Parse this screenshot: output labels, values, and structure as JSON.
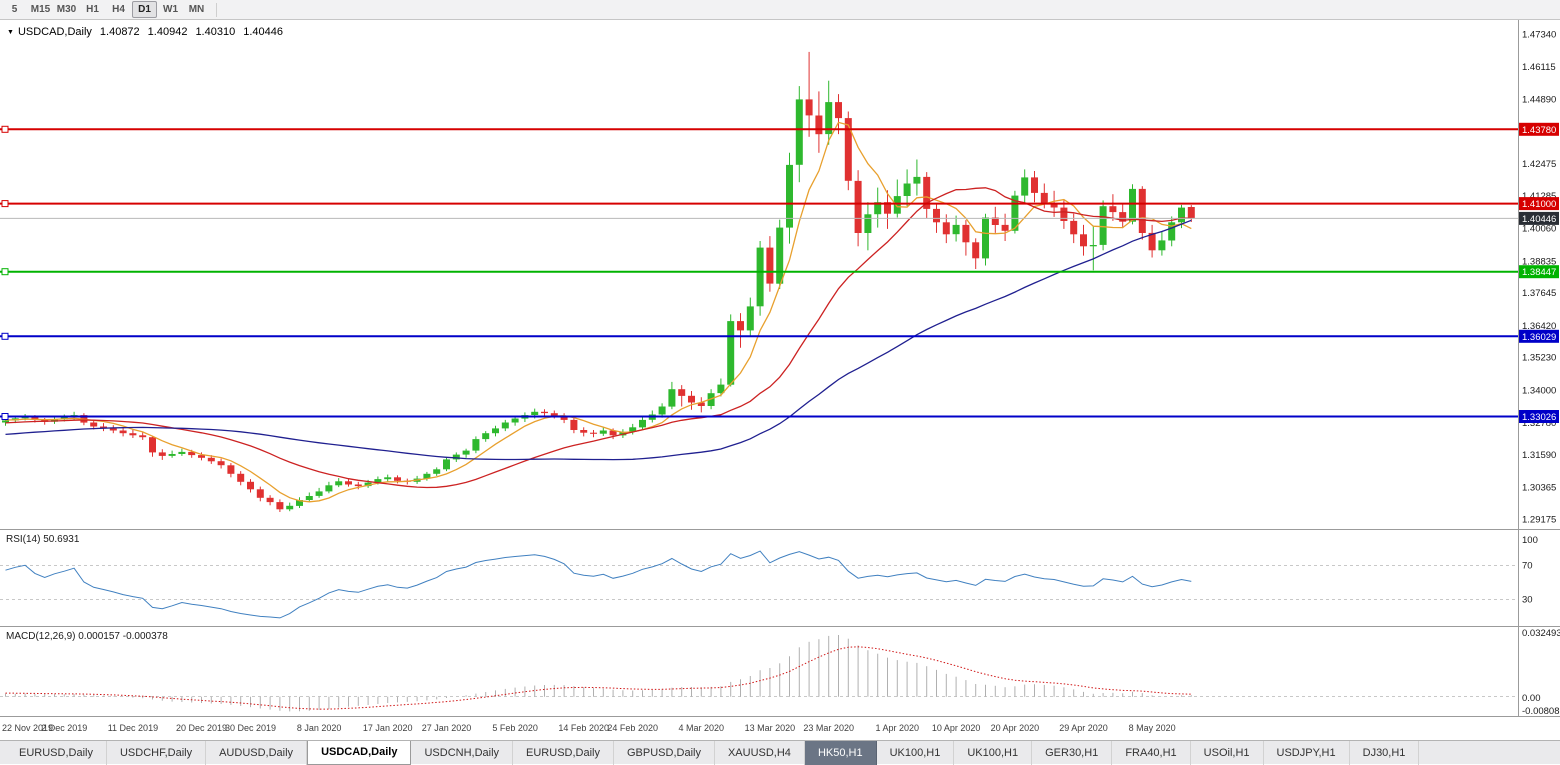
{
  "toolbar": {
    "timeframes": [
      "5",
      "M15",
      "M30",
      "H1",
      "H4",
      "D1",
      "W1",
      "MN"
    ],
    "active": "D1"
  },
  "chart": {
    "header": {
      "symbol": "USDCAD,Daily",
      "open": "1.40872",
      "high": "1.40942",
      "low": "1.40310",
      "close": "1.40446"
    },
    "price_axis_ticks": [
      "1.47340",
      "1.46115",
      "1.44890",
      "1.42475",
      "1.41285",
      "1.40060",
      "1.38835",
      "1.37645",
      "1.36420",
      "1.35230",
      "1.34000",
      "1.32780",
      "1.31590",
      "1.30365",
      "1.29175"
    ]
  },
  "indicators": {
    "rsi": {
      "label": "RSI(14)",
      "value": "50.6931",
      "levels": [
        "100",
        "70",
        "30"
      ],
      "level_lines": [
        70,
        30
      ]
    },
    "macd": {
      "label": "MACD(12,26,9)",
      "value_main": "0.000157",
      "value_signal": "-0.000378",
      "axis": [
        "0.032493",
        "0.00",
        "-0.00808"
      ]
    }
  },
  "tabs": [
    {
      "label": "EURUSD,Daily"
    },
    {
      "label": "USDCHF,Daily"
    },
    {
      "label": "AUDUSD,Daily"
    },
    {
      "label": "USDCAD,Daily",
      "state": "active"
    },
    {
      "label": "USDCNH,Daily"
    },
    {
      "label": "EURUSD,Daily"
    },
    {
      "label": "GBPUSD,Daily"
    },
    {
      "label": "XAUUSD,H4"
    },
    {
      "label": "HK50,H1",
      "state": "dark"
    },
    {
      "label": "UK100,H1"
    },
    {
      "label": "UK100,H1"
    },
    {
      "label": "GER30,H1"
    },
    {
      "label": "FRA40,H1"
    },
    {
      "label": "USOil,H1"
    },
    {
      "label": "USDJPY,H1"
    },
    {
      "label": "DJ30,H1"
    }
  ],
  "colors": {
    "bull": "#2eb82e",
    "bear": "#e03131",
    "rsi": "#4080c0",
    "macd_hist": "#b0b0b0",
    "macd_signal": "#d01616",
    "current_line": "#b8b8b8",
    "current_badge": "#2a2e35"
  },
  "chart_data": {
    "type": "candlestick",
    "title": "USDCAD,Daily",
    "symbol": "USDCAD",
    "timeframe": "Daily",
    "price_axis": {
      "top": 1.478,
      "bottom": 1.2885
    },
    "rsi_period": 14,
    "macd_params": [
      12,
      26,
      9
    ],
    "moving_averages": [
      {
        "period": 6,
        "color": "#e8a02e"
      },
      {
        "period": 21,
        "color": "#cc2222"
      },
      {
        "period": 50,
        "color": "#202090"
      }
    ],
    "hlines": [
      {
        "price": 1.4378,
        "label": "1.43780",
        "color": "#d60000"
      },
      {
        "price": 1.41,
        "label": "1.41000",
        "color": "#d60000"
      },
      {
        "price": 1.38447,
        "label": "1.38447",
        "color": "#00b300"
      },
      {
        "price": 1.36029,
        "label": "1.36029",
        "color": "#0000c8"
      },
      {
        "price": 1.33026,
        "label": "1.33026",
        "color": "#0000c8"
      }
    ],
    "current_price": {
      "price": 1.40446,
      "label": "1.40446"
    },
    "date_ticks": [
      {
        "label": "22 Nov 2019",
        "index": 0
      },
      {
        "label": "2 Dec 2019",
        "index": 6
      },
      {
        "label": "11 Dec 2019",
        "index": 13
      },
      {
        "label": "20 Dec 2019",
        "index": 20
      },
      {
        "label": "30 Dec 2019",
        "index": 25
      },
      {
        "label": "8 Jan 2020",
        "index": 32
      },
      {
        "label": "17 Jan 2020",
        "index": 39
      },
      {
        "label": "27 Jan 2020",
        "index": 45
      },
      {
        "label": "5 Feb 2020",
        "index": 52
      },
      {
        "label": "14 Feb 2020",
        "index": 59
      },
      {
        "label": "24 Feb 2020",
        "index": 64
      },
      {
        "label": "4 Mar 2020",
        "index": 71
      },
      {
        "label": "13 Mar 2020",
        "index": 78
      },
      {
        "label": "23 Mar 2020",
        "index": 84
      },
      {
        "label": "1 Apr 2020",
        "index": 91
      },
      {
        "label": "10 Apr 2020",
        "index": 97
      },
      {
        "label": "20 Apr 2020",
        "index": 103
      },
      {
        "label": "29 Apr 2020",
        "index": 110
      },
      {
        "label": "8 May 2020",
        "index": 117
      }
    ],
    "warmup_closes": [
      1.3152,
      1.3158,
      1.315,
      1.3162,
      1.317,
      1.3165,
      1.3172,
      1.318,
      1.3175,
      1.3185,
      1.3192,
      1.3188,
      1.3195,
      1.3202,
      1.3198,
      1.3205,
      1.3212,
      1.3208,
      1.3215,
      1.3222,
      1.3218,
      1.3225,
      1.3232,
      1.3228,
      1.3235,
      1.3242,
      1.3238,
      1.3245,
      1.3252,
      1.3248,
      1.3255,
      1.3262,
      1.3258,
      1.3265,
      1.3272,
      1.3268,
      1.3275,
      1.327,
      1.3278,
      1.3285,
      1.328,
      1.3288,
      1.3282,
      1.329,
      1.3286,
      1.3292,
      1.3287,
      1.3294,
      1.329,
      1.3286
    ],
    "candles": [
      [
        1.328,
        1.3298,
        1.3268,
        1.3288
      ],
      [
        1.3288,
        1.3305,
        1.3278,
        1.3296
      ],
      [
        1.3296,
        1.3312,
        1.3288,
        1.3302
      ],
      [
        1.3302,
        1.3308,
        1.328,
        1.329
      ],
      [
        1.329,
        1.3297,
        1.3272,
        1.3283
      ],
      [
        1.3283,
        1.33,
        1.3275,
        1.3292
      ],
      [
        1.3292,
        1.331,
        1.3284,
        1.3299
      ],
      [
        1.3299,
        1.332,
        1.329,
        1.3308
      ],
      [
        1.3308,
        1.3315,
        1.327,
        1.328
      ],
      [
        1.328,
        1.3288,
        1.3254,
        1.3265
      ],
      [
        1.3265,
        1.3278,
        1.3248,
        1.3258
      ],
      [
        1.3258,
        1.327,
        1.324,
        1.325
      ],
      [
        1.325,
        1.3262,
        1.3228,
        1.324
      ],
      [
        1.324,
        1.3252,
        1.3222,
        1.3232
      ],
      [
        1.3232,
        1.3245,
        1.3215,
        1.3225
      ],
      [
        1.3225,
        1.323,
        1.3152,
        1.3168
      ],
      [
        1.3168,
        1.318,
        1.314,
        1.3155
      ],
      [
        1.3155,
        1.3175,
        1.3148,
        1.3162
      ],
      [
        1.3162,
        1.3182,
        1.3155,
        1.317
      ],
      [
        1.317,
        1.3178,
        1.3148,
        1.3158
      ],
      [
        1.3158,
        1.3168,
        1.3138,
        1.3148
      ],
      [
        1.3148,
        1.3158,
        1.3125,
        1.3135
      ],
      [
        1.3135,
        1.3145,
        1.3108,
        1.312
      ],
      [
        1.312,
        1.3128,
        1.3075,
        1.3088
      ],
      [
        1.3088,
        1.3098,
        1.3045,
        1.3058
      ],
      [
        1.3058,
        1.3068,
        1.3018,
        1.303
      ],
      [
        1.303,
        1.304,
        1.2985,
        1.2998
      ],
      [
        1.2998,
        1.3008,
        1.297,
        1.2982
      ],
      [
        1.2982,
        1.2992,
        1.2945,
        1.2955
      ],
      [
        1.2955,
        1.298,
        1.2948,
        1.2968
      ],
      [
        1.2968,
        1.3,
        1.296,
        1.299
      ],
      [
        1.299,
        1.3018,
        1.2982,
        1.3005
      ],
      [
        1.3005,
        1.3035,
        1.2998,
        1.3022
      ],
      [
        1.3022,
        1.3058,
        1.3015,
        1.3045
      ],
      [
        1.3045,
        1.3072,
        1.3038,
        1.306
      ],
      [
        1.306,
        1.3068,
        1.304,
        1.3048
      ],
      [
        1.3048,
        1.3058,
        1.303,
        1.3042
      ],
      [
        1.3042,
        1.3065,
        1.3035,
        1.3055
      ],
      [
        1.3055,
        1.3078,
        1.3048,
        1.3068
      ],
      [
        1.3068,
        1.3085,
        1.3058,
        1.3075
      ],
      [
        1.3075,
        1.3082,
        1.3052,
        1.3062
      ],
      [
        1.3062,
        1.307,
        1.3048,
        1.3058
      ],
      [
        1.3058,
        1.308,
        1.305,
        1.307
      ],
      [
        1.307,
        1.3095,
        1.3062,
        1.3088
      ],
      [
        1.3088,
        1.3112,
        1.308,
        1.3105
      ],
      [
        1.3105,
        1.315,
        1.3098,
        1.3142
      ],
      [
        1.3142,
        1.3168,
        1.3132,
        1.316
      ],
      [
        1.316,
        1.3182,
        1.3148,
        1.3175
      ],
      [
        1.3175,
        1.3228,
        1.3165,
        1.3218
      ],
      [
        1.3218,
        1.3248,
        1.3208,
        1.324
      ],
      [
        1.324,
        1.3268,
        1.3228,
        1.3258
      ],
      [
        1.3258,
        1.329,
        1.3248,
        1.328
      ],
      [
        1.328,
        1.3305,
        1.3268,
        1.3295
      ],
      [
        1.3295,
        1.3318,
        1.3282,
        1.3308
      ],
      [
        1.3308,
        1.3332,
        1.3295,
        1.332
      ],
      [
        1.332,
        1.333,
        1.3305,
        1.3315
      ],
      [
        1.3315,
        1.3325,
        1.3295,
        1.3305
      ],
      [
        1.3305,
        1.3315,
        1.3278,
        1.329
      ],
      [
        1.329,
        1.3298,
        1.324,
        1.3252
      ],
      [
        1.3252,
        1.3262,
        1.3228,
        1.3242
      ],
      [
        1.3242,
        1.3252,
        1.3225,
        1.3238
      ],
      [
        1.3238,
        1.3262,
        1.323,
        1.325
      ],
      [
        1.325,
        1.3258,
        1.3218,
        1.3232
      ],
      [
        1.3232,
        1.3255,
        1.3222,
        1.3245
      ],
      [
        1.3245,
        1.3275,
        1.3235,
        1.3262
      ],
      [
        1.3262,
        1.3302,
        1.3252,
        1.329
      ],
      [
        1.329,
        1.3325,
        1.328,
        1.331
      ],
      [
        1.331,
        1.3352,
        1.3298,
        1.334
      ],
      [
        1.334,
        1.3432,
        1.333,
        1.3405
      ],
      [
        1.3405,
        1.342,
        1.334,
        1.338
      ],
      [
        1.338,
        1.3398,
        1.3328,
        1.3355
      ],
      [
        1.3355,
        1.3375,
        1.3318,
        1.3342
      ],
      [
        1.3342,
        1.3405,
        1.333,
        1.339
      ],
      [
        1.339,
        1.3445,
        1.3378,
        1.3422
      ],
      [
        1.3422,
        1.3685,
        1.3415,
        1.366
      ],
      [
        1.366,
        1.369,
        1.356,
        1.3625
      ],
      [
        1.3625,
        1.3748,
        1.3605,
        1.3715
      ],
      [
        1.3715,
        1.396,
        1.368,
        1.3935
      ],
      [
        1.3935,
        1.3978,
        1.377,
        1.38
      ],
      [
        1.38,
        1.404,
        1.378,
        1.401
      ],
      [
        1.401,
        1.429,
        1.395,
        1.4245
      ],
      [
        1.4245,
        1.454,
        1.418,
        1.449
      ],
      [
        1.449,
        1.4668,
        1.435,
        1.443
      ],
      [
        1.443,
        1.452,
        1.429,
        1.436
      ],
      [
        1.436,
        1.456,
        1.432,
        1.448
      ],
      [
        1.448,
        1.451,
        1.436,
        1.442
      ],
      [
        1.442,
        1.4445,
        1.415,
        1.4185
      ],
      [
        1.4185,
        1.4225,
        1.394,
        1.399
      ],
      [
        1.399,
        1.4105,
        1.3925,
        1.406
      ],
      [
        1.406,
        1.416,
        1.401,
        1.4105
      ],
      [
        1.4105,
        1.415,
        1.4005,
        1.4062
      ],
      [
        1.4062,
        1.419,
        1.4048,
        1.4128
      ],
      [
        1.4128,
        1.4228,
        1.409,
        1.4175
      ],
      [
        1.4175,
        1.4265,
        1.413,
        1.42
      ],
      [
        1.42,
        1.4218,
        1.4045,
        1.408
      ],
      [
        1.408,
        1.4102,
        1.399,
        1.403
      ],
      [
        1.403,
        1.406,
        1.3952,
        1.3985
      ],
      [
        1.3985,
        1.4055,
        1.3958,
        1.402
      ],
      [
        1.402,
        1.4038,
        1.3905,
        1.3955
      ],
      [
        1.3955,
        1.397,
        1.3855,
        1.3895
      ],
      [
        1.3895,
        1.4062,
        1.3868,
        1.4048
      ],
      [
        1.4048,
        1.4088,
        1.399,
        1.402
      ],
      [
        1.402,
        1.4062,
        1.396,
        1.3998
      ],
      [
        1.3998,
        1.4148,
        1.3988,
        1.413
      ],
      [
        1.413,
        1.4228,
        1.4098,
        1.4198
      ],
      [
        1.4198,
        1.4222,
        1.4105,
        1.414
      ],
      [
        1.414,
        1.4175,
        1.4082,
        1.4102
      ],
      [
        1.4102,
        1.4148,
        1.405,
        1.4085
      ],
      [
        1.4085,
        1.4112,
        1.4005,
        1.4035
      ],
      [
        1.4035,
        1.4062,
        1.3952,
        1.3985
      ],
      [
        1.3985,
        1.402,
        1.3905,
        1.394
      ],
      [
        1.394,
        1.4018,
        1.385,
        1.3945
      ],
      [
        1.3945,
        1.4112,
        1.3925,
        1.409
      ],
      [
        1.409,
        1.4135,
        1.4035,
        1.4068
      ],
      [
        1.4068,
        1.4098,
        1.4008,
        1.4032
      ],
      [
        1.4032,
        1.4172,
        1.4022,
        1.4155
      ],
      [
        1.4155,
        1.4165,
        1.3965,
        1.399
      ],
      [
        1.399,
        1.402,
        1.3898,
        1.3925
      ],
      [
        1.3925,
        1.3995,
        1.3905,
        1.3962
      ],
      [
        1.3962,
        1.4052,
        1.394,
        1.403
      ],
      [
        1.403,
        1.4095,
        1.4008,
        1.4085
      ],
      [
        1.40872,
        1.40942,
        1.4031,
        1.40446
      ]
    ]
  }
}
